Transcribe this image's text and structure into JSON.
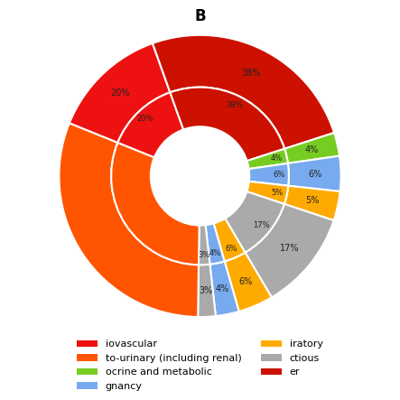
{
  "chart_data": {
    "type": "pie",
    "title": "B",
    "series": [
      {
        "values": [
          20,
          38,
          4,
          6,
          5,
          17,
          6,
          4,
          3,
          46
        ],
        "value_labels": [
          "20%",
          "38%",
          "4%",
          "6%",
          "5%",
          "17%",
          "6%",
          "4%",
          "3%",
          null
        ],
        "colors": [
          "#ee1111",
          "#cc1100",
          "#77cc22",
          "#77aaee",
          "#ffaa00",
          "#aaaaaa",
          "#ffaa00",
          "#77aaee",
          "#aaaaaa",
          "#ff5500"
        ]
      },
      {
        "values": [
          20,
          38,
          4,
          6,
          5,
          17,
          6,
          4,
          3,
          46
        ],
        "value_labels": [
          "20%",
          "38%",
          "4%",
          "6%",
          "5%",
          "17%",
          "6%",
          "4%",
          "3%",
          null
        ],
        "colors": [
          "#ee1111",
          "#cc1100",
          "#77cc22",
          "#77aaee",
          "#ffaa00",
          "#aaaaaa",
          "#ffaa00",
          "#77aaee",
          "#aaaaaa",
          "#ff5500"
        ]
      }
    ],
    "data_labels": true,
    "legend": "lower center",
    "legend_entries": [
      {
        "label": "iovascular",
        "color": "#ee1111"
      },
      {
        "label": "to-urinary (including renal)",
        "color": "#ff5500"
      },
      {
        "label": "ocrine and metabolic",
        "color": "#77cc22"
      },
      {
        "label": "gnancy",
        "color": "#77aaee"
      },
      {
        "label": "iratory",
        "color": "#ffaa00"
      },
      {
        "label": "ctious",
        "color": "#aaaaaa"
      },
      {
        "label": "er",
        "color": "#cc1100"
      }
    ]
  }
}
